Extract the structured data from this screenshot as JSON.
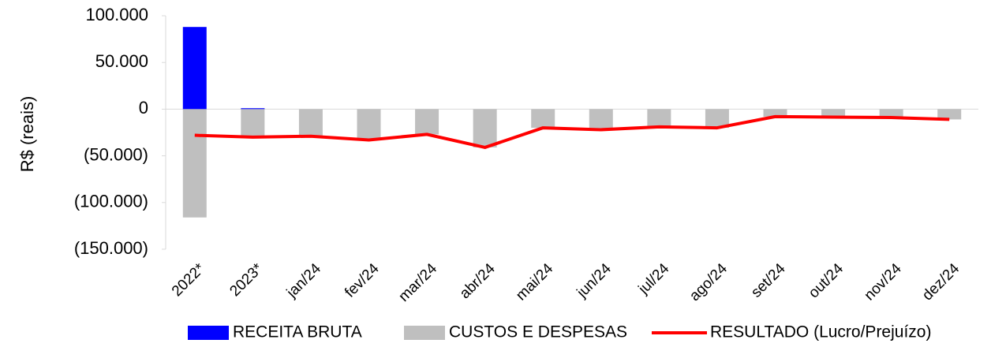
{
  "chart_data": {
    "type": "bar_line",
    "y_label": "R$ (reais)",
    "categories": [
      "2022*",
      "2023*",
      "jan/24",
      "fev/24",
      "mar/24",
      "abr/24",
      "mai/24",
      "jun/24",
      "jul/24",
      "ago/24",
      "set/24",
      "out/24",
      "nov/24",
      "dez/24"
    ],
    "series": [
      {
        "name": "RECEITA BRUTA",
        "type": "bar",
        "color": "#0000ff",
        "values": [
          88000,
          1000,
          0,
          0,
          0,
          0,
          0,
          0,
          0,
          0,
          0,
          0,
          0,
          0
        ]
      },
      {
        "name": "CUSTOS E DESPESAS",
        "type": "bar",
        "color": "#bfbfbf",
        "values": [
          -116000,
          -31000,
          -29000,
          -33000,
          -27000,
          -41000,
          -20000,
          -22000,
          -19000,
          -20000,
          -8000,
          -8500,
          -9000,
          -11000
        ]
      },
      {
        "name": "RESULTADO (Lucro/Prejuízo)",
        "type": "line",
        "color": "#ff0000",
        "values": [
          -28000,
          -30000,
          -29000,
          -33000,
          -27000,
          -41000,
          -20000,
          -22000,
          -19000,
          -20000,
          -8000,
          -8500,
          -9000,
          -11000
        ]
      }
    ],
    "ylim": [
      -150000,
      100000
    ],
    "yticks": [
      {
        "value": -150000,
        "label": "(150.000)"
      },
      {
        "value": -100000,
        "label": "(100.000)"
      },
      {
        "value": -50000,
        "label": "(50.000)"
      },
      0,
      {
        "value": 50000,
        "label": "50.000"
      },
      {
        "value": 100000,
        "label": "100.000"
      }
    ],
    "negative_tick_color": "#ff0000",
    "legend": "bottom"
  }
}
